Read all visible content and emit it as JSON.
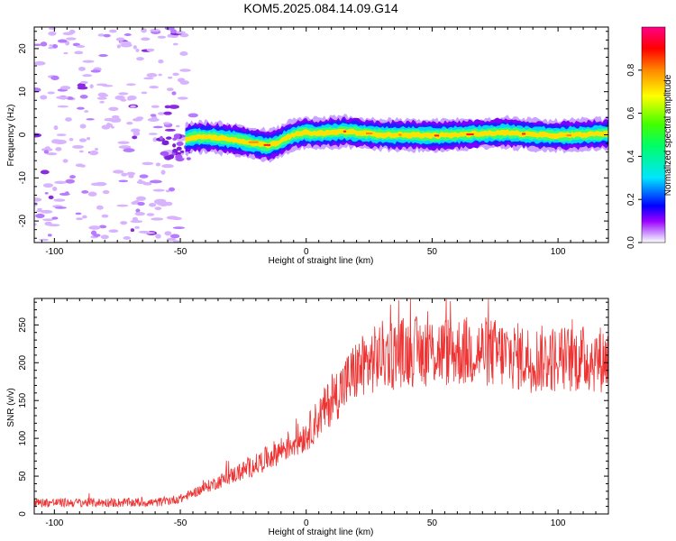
{
  "title": "KOM5.2025.084.14.09.G14",
  "chart_data": [
    {
      "type": "heatmap",
      "xlabel": "Height of straight line (km)",
      "ylabel": "Frequency (Hz)",
      "xlim": [
        -108,
        120
      ],
      "ylim": [
        -25,
        25
      ],
      "xticks": [
        -100,
        -50,
        0,
        50,
        100
      ],
      "yticks": [
        -20,
        -10,
        0,
        10,
        20
      ],
      "colorbar": {
        "label": "Normalized spectral amplitude",
        "range": [
          0,
          1
        ],
        "ticks": [
          "0.0",
          "0.2",
          "0.4",
          "0.6",
          "0.8"
        ]
      },
      "ridge": {
        "x": [
          -50,
          -45,
          -40,
          -35,
          -30,
          -25,
          -20,
          -18,
          -15,
          -12,
          -10,
          -7,
          -5,
          0,
          5,
          10,
          15,
          20,
          30,
          40,
          50,
          60,
          70,
          80,
          90,
          100,
          110,
          120
        ],
        "freq": [
          -1.5,
          -0.5,
          -0.5,
          -0.7,
          -1,
          -1.5,
          -2,
          -2.3,
          -2.5,
          -2,
          -1.5,
          -0.5,
          0,
          0.5,
          0.3,
          0.5,
          0.8,
          0.5,
          0,
          0,
          -0.2,
          0,
          0.3,
          0.5,
          0,
          -0.2,
          0,
          0.3
        ]
      }
    },
    {
      "type": "line",
      "xlabel": "Height of straight line (km)",
      "ylabel": "SNR (v/v)",
      "xlim": [
        -108,
        120
      ],
      "ylim": [
        0,
        285
      ],
      "xticks": [
        -100,
        -50,
        0,
        50,
        100
      ],
      "yticks": [
        0,
        50,
        100,
        150,
        200,
        250
      ],
      "color": "#ee3333",
      "trend": {
        "x": [
          -108,
          -60,
          -50,
          -40,
          -30,
          -20,
          -10,
          0,
          10,
          20,
          30,
          40,
          50,
          60,
          70,
          80,
          90,
          100,
          110,
          120
        ],
        "y": [
          15,
          15,
          20,
          35,
          50,
          65,
          85,
          105,
          150,
          190,
          210,
          215,
          215,
          215,
          215,
          210,
          205,
          205,
          205,
          205
        ]
      }
    }
  ]
}
